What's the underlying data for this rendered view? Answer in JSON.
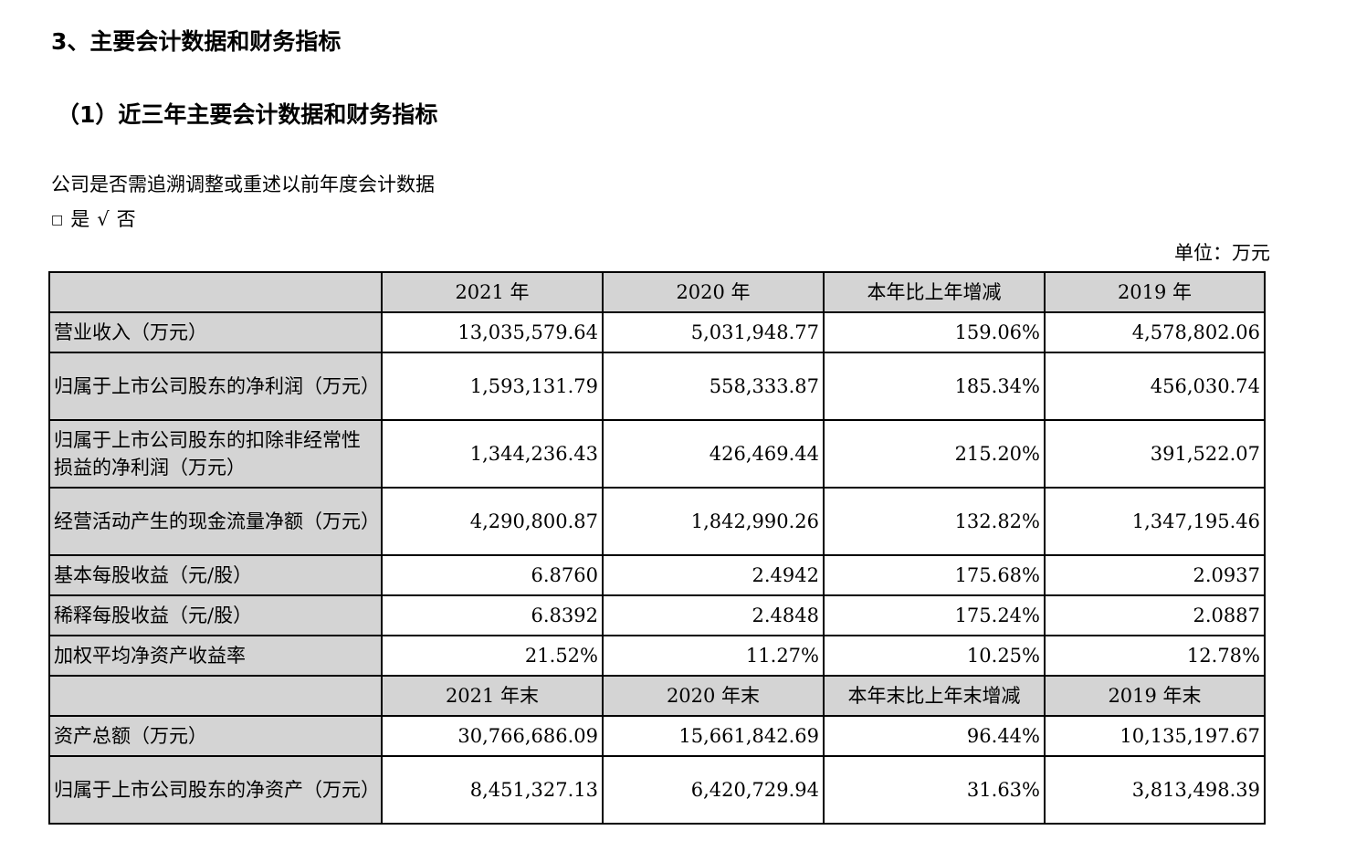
{
  "heading": "3、主要会计数据和财务指标",
  "subheading": "（1）近三年主要会计数据和财务指标",
  "question": "公司是否需追溯调整或重述以前年度会计数据",
  "options": {
    "box": "□",
    "yes": "是",
    "check": "√",
    "no": "否"
  },
  "unit": "单位：万元",
  "table": {
    "header1": [
      "",
      "2021 年",
      "2020 年",
      "本年比上年增减",
      "2019 年"
    ],
    "rows1": [
      [
        "营业收入（万元）",
        "13,035,579.64",
        "5,031,948.77",
        "159.06%",
        "4,578,802.06"
      ],
      [
        "归属于上市公司股东的净利润（万元）",
        "1,593,131.79",
        "558,333.87",
        "185.34%",
        "456,030.74"
      ],
      [
        "归属于上市公司股东的扣除非经常性损益的净利润（万元）",
        "1,344,236.43",
        "426,469.44",
        "215.20%",
        "391,522.07"
      ],
      [
        "经营活动产生的现金流量净额（万元）",
        "4,290,800.87",
        "1,842,990.26",
        "132.82%",
        "1,347,195.46"
      ],
      [
        "基本每股收益（元/股）",
        "6.8760",
        "2.4942",
        "175.68%",
        "2.0937"
      ],
      [
        "稀释每股收益（元/股）",
        "6.8392",
        "2.4848",
        "175.24%",
        "2.0887"
      ],
      [
        "加权平均净资产收益率",
        "21.52%",
        "11.27%",
        "10.25%",
        "12.78%"
      ]
    ],
    "header2": [
      "",
      "2021 年末",
      "2020 年末",
      "本年末比上年末增减",
      "2019 年末"
    ],
    "rows2": [
      [
        "资产总额（万元）",
        "30,766,686.09",
        "15,661,842.69",
        "96.44%",
        "10,135,197.67"
      ],
      [
        "归属于上市公司股东的净资产（万元）",
        "8,451,327.13",
        "6,420,729.94",
        "31.63%",
        "3,813,498.39"
      ]
    ]
  }
}
